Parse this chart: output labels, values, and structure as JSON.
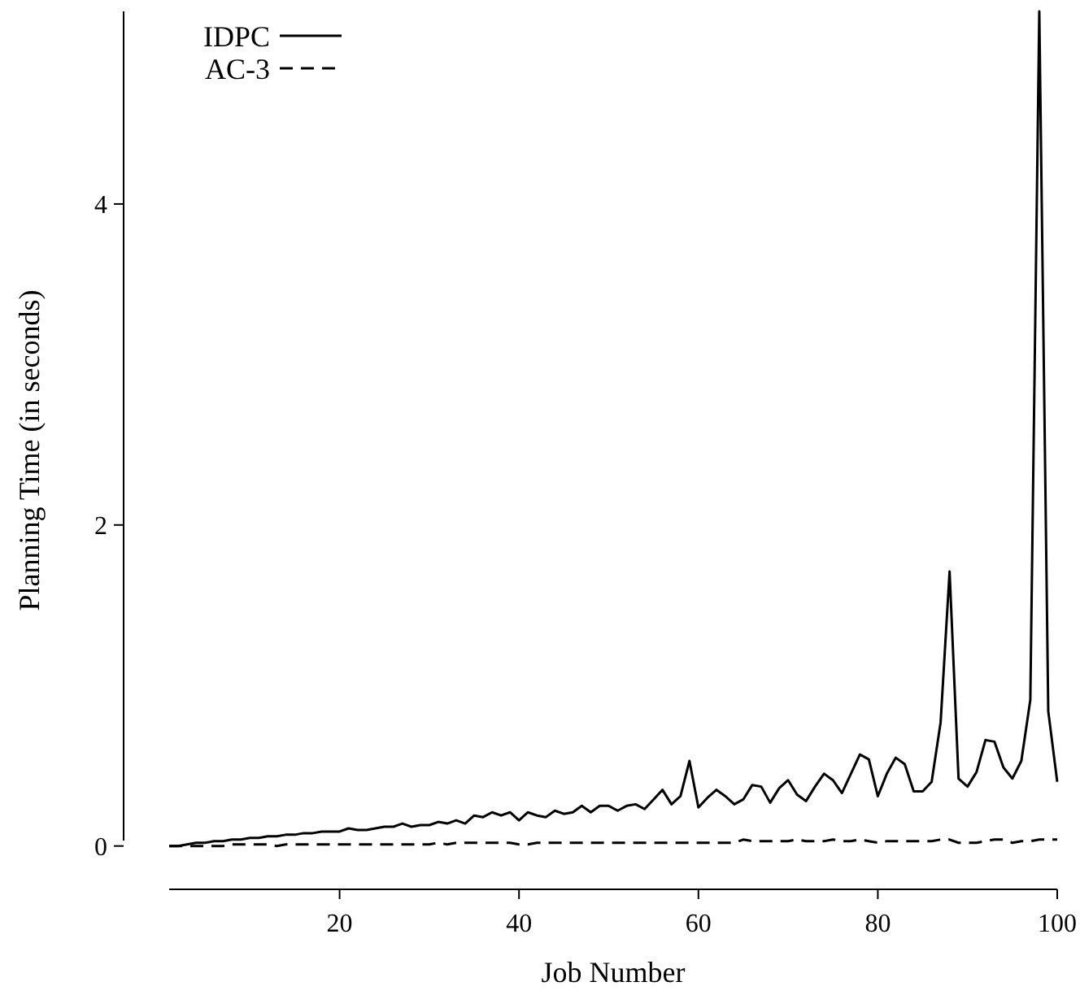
{
  "chart_data": {
    "type": "line",
    "xlabel": "Job Number",
    "ylabel": "Planning Time (in seconds)",
    "x": [
      1,
      2,
      3,
      4,
      5,
      6,
      7,
      8,
      9,
      10,
      11,
      12,
      13,
      14,
      15,
      16,
      17,
      18,
      19,
      20,
      21,
      22,
      23,
      24,
      25,
      26,
      27,
      28,
      29,
      30,
      31,
      32,
      33,
      34,
      35,
      36,
      37,
      38,
      39,
      40,
      41,
      42,
      43,
      44,
      45,
      46,
      47,
      48,
      49,
      50,
      51,
      52,
      53,
      54,
      55,
      56,
      57,
      58,
      59,
      60,
      61,
      62,
      63,
      64,
      65,
      66,
      67,
      68,
      69,
      70,
      71,
      72,
      73,
      74,
      75,
      76,
      77,
      78,
      79,
      80,
      81,
      82,
      83,
      84,
      85,
      86,
      87,
      88,
      89,
      90,
      91,
      92,
      93,
      94,
      95,
      96,
      97,
      98,
      99,
      100
    ],
    "series": [
      {
        "name": "IDPC",
        "color": "#000000",
        "line_style": "solid",
        "values": [
          0,
          0,
          0.01,
          0.02,
          0.02,
          0.03,
          0.03,
          0.04,
          0.04,
          0.05,
          0.05,
          0.06,
          0.06,
          0.07,
          0.07,
          0.08,
          0.08,
          0.09,
          0.09,
          0.09,
          0.11,
          0.1,
          0.1,
          0.11,
          0.12,
          0.12,
          0.14,
          0.12,
          0.13,
          0.13,
          0.15,
          0.14,
          0.16,
          0.14,
          0.19,
          0.18,
          0.21,
          0.19,
          0.21,
          0.16,
          0.21,
          0.19,
          0.18,
          0.22,
          0.2,
          0.21,
          0.25,
          0.21,
          0.25,
          0.25,
          0.22,
          0.25,
          0.26,
          0.23,
          0.29,
          0.35,
          0.26,
          0.31,
          0.53,
          0.24,
          0.3,
          0.35,
          0.31,
          0.26,
          0.29,
          0.38,
          0.37,
          0.27,
          0.36,
          0.41,
          0.32,
          0.28,
          0.37,
          0.45,
          0.41,
          0.33,
          0.45,
          0.57,
          0.54,
          0.31,
          0.45,
          0.55,
          0.51,
          0.34,
          0.34,
          0.4,
          0.77,
          1.71,
          0.42,
          0.37,
          0.46,
          0.66,
          0.65,
          0.49,
          0.42,
          0.53,
          0.91,
          5.2,
          0.84,
          0.4
        ]
      },
      {
        "name": "AC-3",
        "color": "#000000",
        "line_style": "dashed",
        "values": [
          0,
          0,
          0,
          0,
          0,
          0,
          0,
          0.01,
          0.01,
          0.01,
          0.01,
          0.01,
          0,
          0.01,
          0.01,
          0.01,
          0.01,
          0.01,
          0.01,
          0.01,
          0.01,
          0.01,
          0.01,
          0.01,
          0.01,
          0.01,
          0.01,
          0.01,
          0.01,
          0.01,
          0.02,
          0.01,
          0.02,
          0.02,
          0.02,
          0.02,
          0.02,
          0.02,
          0.02,
          0.01,
          0.01,
          0.02,
          0.02,
          0.02,
          0.02,
          0.02,
          0.02,
          0.02,
          0.02,
          0.02,
          0.02,
          0.02,
          0.02,
          0.02,
          0.02,
          0.02,
          0.02,
          0.02,
          0.02,
          0.02,
          0.02,
          0.02,
          0.02,
          0.02,
          0.04,
          0.03,
          0.03,
          0.03,
          0.03,
          0.03,
          0.04,
          0.03,
          0.03,
          0.03,
          0.04,
          0.03,
          0.03,
          0.04,
          0.03,
          0.02,
          0.03,
          0.03,
          0.03,
          0.03,
          0.03,
          0.03,
          0.04,
          0.04,
          0.02,
          0.02,
          0.02,
          0.03,
          0.04,
          0.04,
          0.02,
          0.03,
          0.03,
          0.04,
          0.04,
          0.04
        ]
      }
    ],
    "xlim": [
      1,
      100
    ],
    "ylim": [
      -0.27,
      5.2
    ],
    "xticks": [
      20,
      40,
      60,
      80,
      100
    ],
    "yticks": [
      0,
      2,
      4
    ],
    "legend": "top left",
    "grid": false
  }
}
